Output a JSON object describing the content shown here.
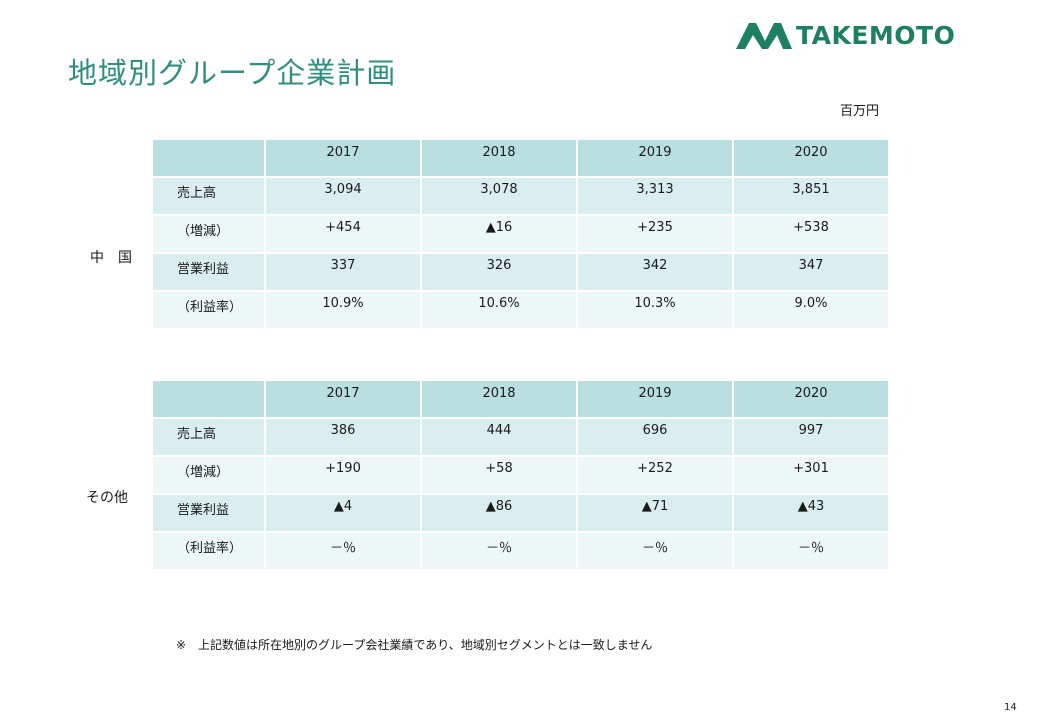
{
  "page": {
    "title": "地域別グループ企業計画",
    "logo_text": "TAKEMOTO",
    "unit": "百万円",
    "note": "※　上記数値は所在地別のグループ会社業績であり、地域別セグメントとは一致しません",
    "page_number": "14"
  },
  "china": {
    "region_label": "中　国",
    "years": [
      "2017",
      "2018",
      "2019",
      "2020"
    ],
    "rows": [
      {
        "label": "売上高",
        "values": [
          "3,094",
          "3,078",
          "3,313",
          "3,851"
        ]
      },
      {
        "label": "（増減）",
        "values": [
          "+454",
          "▲16",
          "+235",
          "+538"
        ]
      },
      {
        "label": "営業利益",
        "values": [
          "337",
          "326",
          "342",
          "347"
        ]
      },
      {
        "label": "（利益率）",
        "values": [
          "10.9%",
          "10.6%",
          "10.3%",
          "9.0%"
        ]
      }
    ]
  },
  "other": {
    "region_label": "その他",
    "years": [
      "2017",
      "2018",
      "2019",
      "2020"
    ],
    "rows": [
      {
        "label": "売上高",
        "values": [
          "386",
          "444",
          "696",
          "997"
        ]
      },
      {
        "label": "（増減）",
        "values": [
          "+190",
          "+58",
          "+252",
          "+301"
        ]
      },
      {
        "label": "営業利益",
        "values": [
          "▲4",
          "▲86",
          "▲71",
          "▲43"
        ]
      },
      {
        "label": "（利益率）",
        "values": [
          "－％",
          "－％",
          "－％",
          "－％"
        ]
      }
    ]
  },
  "colors": {
    "title": "#2f8f7e",
    "logo": "#1f7f62",
    "header_fill": "#b9dfe1",
    "row_dark": "#dbeeef",
    "row_light": "#eef7f8"
  }
}
